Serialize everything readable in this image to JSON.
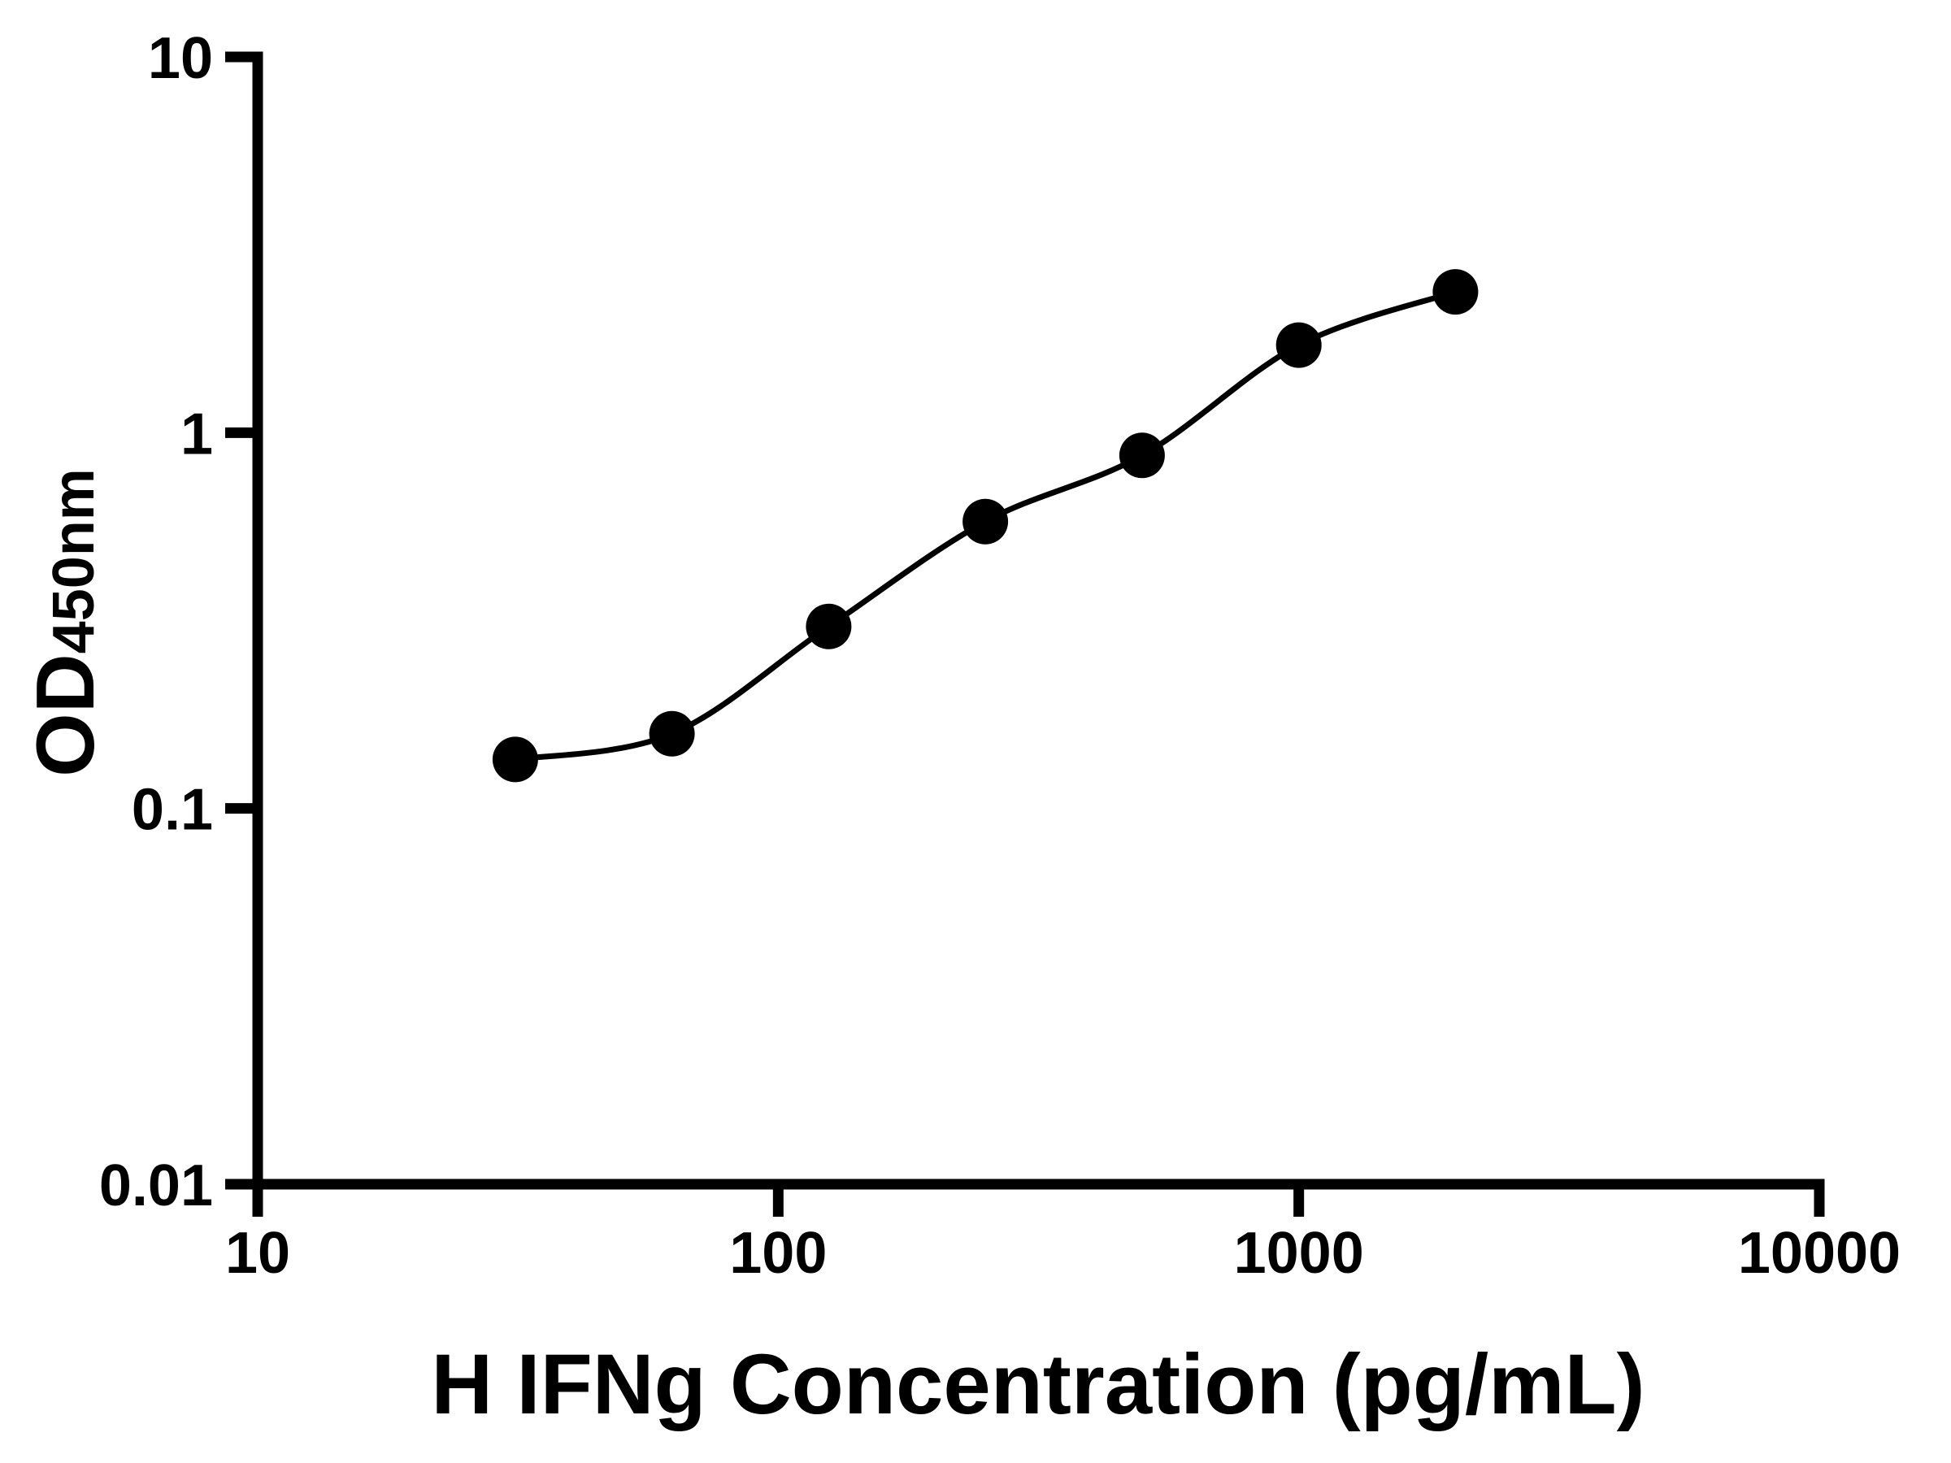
{
  "figure": {
    "background_color": "#ffffff",
    "foreground_color": "#000000"
  },
  "chart_data": {
    "type": "scatter",
    "title": "",
    "xlabel": "H IFNg Concentration (pg/mL)",
    "ylabel": "OD",
    "ylabel_subscript": "450nm",
    "x_scale": "log10",
    "y_scale": "log10",
    "xlim": [
      10,
      10000
    ],
    "ylim": [
      0.01,
      10
    ],
    "x_tick_values": [
      10,
      100,
      1000,
      10000
    ],
    "x_tick_labels": [
      "10",
      "100",
      "1000",
      "10000"
    ],
    "y_tick_values": [
      10,
      1,
      0.1,
      0.01
    ],
    "y_tick_labels": [
      "10",
      "1",
      "0.1",
      "0.01"
    ],
    "grid": false,
    "legend": false,
    "series": [
      {
        "marker": "filled-circle",
        "color": "#000000",
        "line": "smooth-sigmoid-fit",
        "x": [
          31.25,
          62.5,
          125,
          250,
          500,
          1000,
          2000
        ],
        "y": [
          0.135,
          0.158,
          0.305,
          0.58,
          0.87,
          1.71,
          2.37
        ]
      }
    ]
  }
}
